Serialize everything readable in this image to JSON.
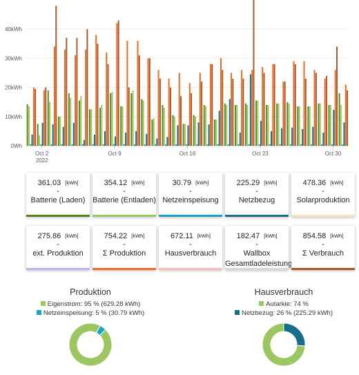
{
  "chart_data": {
    "type": "bar",
    "ylabel": "",
    "xlabel": "",
    "yticks": [
      "0Wh",
      "10kWh",
      "20kWh",
      "30kWh",
      "40kWh"
    ],
    "ylim": [
      0,
      50
    ],
    "x_ticks": [
      {
        "day": 2,
        "label": "Oct 2",
        "sub": "2022"
      },
      {
        "day": 9,
        "label": "Oct 9",
        "sub": ""
      },
      {
        "day": 16,
        "label": "Oct 16",
        "sub": ""
      },
      {
        "day": 23,
        "label": "Oct 23",
        "sub": ""
      },
      {
        "day": 30,
        "label": "Oct 30",
        "sub": ""
      }
    ],
    "days": [
      1,
      2,
      3,
      4,
      5,
      6,
      7,
      8,
      9,
      10,
      11,
      12,
      13,
      14,
      15,
      16,
      17,
      18,
      19,
      20,
      21,
      22,
      23,
      24,
      25,
      26,
      27,
      28,
      29,
      30,
      31
    ],
    "series": [
      {
        "color": "#5a8a1e",
        "values": [
          14.2,
          7.5,
          19,
          10,
          18,
          15.5,
          12.5,
          13,
          18,
          13.5,
          18,
          16,
          9,
          14,
          10.5,
          7.5,
          10.5,
          14,
          9,
          14.5,
          14,
          14.5,
          15.5,
          14,
          14.5,
          15,
          13.5,
          13.5,
          14.5,
          14,
          18
        ]
      },
      {
        "color": "#9cc660",
        "values": [
          13.5,
          3.5,
          15,
          10,
          16.5,
          17,
          12.5,
          14,
          18.5,
          13.5,
          19,
          15.5,
          9.5,
          13,
          10,
          7.5,
          10,
          13.5,
          9,
          14,
          14,
          14,
          15.5,
          14,
          14.5,
          14.5,
          13.5,
          13.5,
          14.5,
          14,
          14
        ]
      },
      {
        "color": "#1aa3c8",
        "values": [
          0.5,
          0.5,
          0.5,
          0.5,
          0.5,
          0.5,
          0.5,
          0.5,
          0.5,
          0.5,
          0.5,
          0.5,
          0.5,
          0.5,
          0.5,
          0.5,
          0.5,
          0.5,
          0.5,
          0.5,
          0.5,
          0.5,
          0.5,
          0.5,
          0.5,
          0.5,
          0.5,
          0.5,
          0.5,
          0.5,
          0.5
        ]
      },
      {
        "color": "#166e8a",
        "values": [
          3.8,
          7.8,
          7.3,
          6.5,
          7.8,
          2,
          3.8,
          5,
          3.2,
          4.5,
          5,
          4,
          2.5,
          3,
          7,
          7,
          8,
          7.3,
          12,
          16,
          4.5,
          24.5,
          8.5,
          5,
          6,
          6.2,
          5.7,
          6.5,
          4.5,
          12.3,
          8
        ]
      },
      {
        "color": "#ee6a20",
        "values": [
          20,
          19,
          34,
          33,
          31,
          33,
          38,
          32,
          42,
          36,
          36,
          30,
          26,
          23,
          25,
          21.5,
          25,
          28,
          30,
          25,
          26,
          26,
          27,
          28,
          22,
          29,
          29,
          26,
          23,
          26,
          21
        ]
      },
      {
        "color": "#a55a2a",
        "values": [
          19.5,
          20,
          48,
          37,
          37,
          40,
          35,
          28,
          43,
          20,
          31,
          30,
          23,
          20,
          17,
          18,
          22,
          28,
          26,
          23,
          23,
          50,
          25,
          28,
          22,
          28,
          23,
          25,
          24,
          34,
          19
        ]
      }
    ]
  },
  "cards_row1": [
    {
      "value": "361.03",
      "unit": "[kWh]",
      "label": "Batterie (Laden)",
      "color": "#5a7d1e"
    },
    {
      "value": "354.12",
      "unit": "[kWh]",
      "label": "Batterie (Entladen)",
      "color": "#9cc660"
    },
    {
      "value": "30.79",
      "unit": "[kWh]",
      "label": "Netzeinspeisung",
      "color": "#1aa3c8"
    },
    {
      "value": "225.29",
      "unit": "[kWh]",
      "label": "Netzbezug",
      "color": "#166e8a"
    },
    {
      "value": "478.36",
      "unit": "[kWh]",
      "label": "Solarproduktion",
      "color": "#f5e6c0"
    }
  ],
  "cards_row2": [
    {
      "value": "275.86",
      "unit": "[kWh]",
      "label": "ext. Produktion",
      "color": "#c9b2e8"
    },
    {
      "value": "754.22",
      "unit": "[kWh]",
      "label": "Σ Produktion",
      "color": "#ee6a20"
    },
    {
      "value": "672.11",
      "unit": "[kWh]",
      "label": "Hausverbrauch",
      "color": "#f2c1bf"
    },
    {
      "value": "182.47",
      "unit": "[kWh]",
      "label": "Wallbox Gesamtladeleistung",
      "color": "#d8d8d8"
    },
    {
      "value": "854.58",
      "unit": "[kWh]",
      "label": "Σ Verbrauch",
      "color": "#a55a2a"
    }
  ],
  "dash": "-",
  "pies": [
    {
      "title": "Produktion",
      "legend": [
        {
          "text": "Eigenstrom: 95 % (629.28 kWh)",
          "color": "#9cc660"
        },
        {
          "text": "Netzeinspeisung: 5 % (30.79 kWh)",
          "color": "#1aa3c8"
        }
      ],
      "slices": [
        {
          "value": 95,
          "color": "#9cc660"
        },
        {
          "value": 5,
          "color": "#1aa3c8"
        }
      ],
      "start": 45
    },
    {
      "title": "Hausverbrauch",
      "legend": [
        {
          "text": "Autarkie: 74 %",
          "color": "#9cc660"
        },
        {
          "text": "Netzbezug: 26 % (225.29 kWh)",
          "color": "#166e8a"
        }
      ],
      "slices": [
        {
          "value": 26,
          "color": "#166e8a"
        },
        {
          "value": 74,
          "color": "#9cc660"
        }
      ],
      "start": 0
    }
  ]
}
